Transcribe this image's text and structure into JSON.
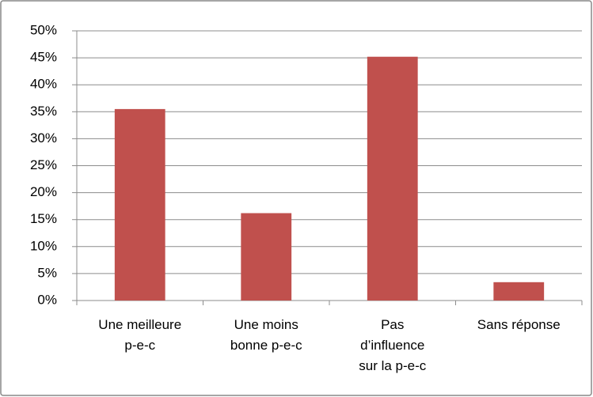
{
  "chart_data": {
    "type": "bar",
    "categories": [
      "Une meilleure\np-e-c",
      "Une moins\nbonne p-e-c",
      "Pas\nd’influence\nsur la p-e-c",
      "Sans réponse"
    ],
    "values": [
      35.5,
      16.2,
      45.2,
      3.4
    ],
    "color": "#c0504d",
    "ylim": [
      0,
      50
    ],
    "yticks": [
      {
        "value": 0,
        "label": "0%"
      },
      {
        "value": 5,
        "label": "5%"
      },
      {
        "value": 10,
        "label": "10%"
      },
      {
        "value": 15,
        "label": "15%"
      },
      {
        "value": 20,
        "label": "20%"
      },
      {
        "value": 25,
        "label": "25%"
      },
      {
        "value": 30,
        "label": "30%"
      },
      {
        "value": 35,
        "label": "35%"
      },
      {
        "value": 40,
        "label": "40%"
      },
      {
        "value": 45,
        "label": "45%"
      },
      {
        "value": 50,
        "label": "50%"
      }
    ],
    "grid": true
  }
}
